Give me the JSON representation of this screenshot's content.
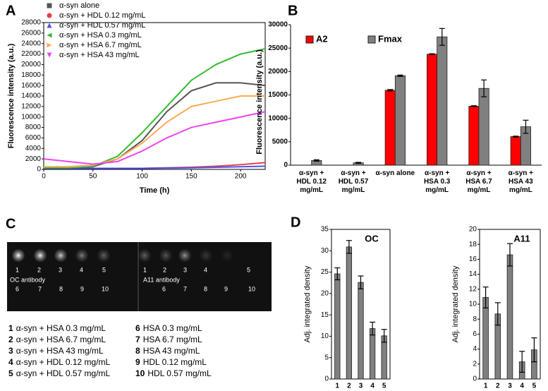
{
  "panels": [
    "A",
    "B",
    "C",
    "D"
  ],
  "chart_data": [
    {
      "type": "line",
      "xlabel": "Time (h)",
      "ylabel": "Fluorescence intensity (a.u.)",
      "x": [
        0,
        25,
        50,
        75,
        100,
        125,
        150,
        175,
        200,
        225
      ],
      "xlim": [
        0,
        225
      ],
      "xticks": [
        0,
        50,
        100,
        150,
        200
      ],
      "ylim": [
        0,
        28000
      ],
      "yticks": [
        0,
        2000,
        4000,
        6000,
        8000,
        10000,
        12000,
        14000,
        16000,
        18000,
        20000,
        22000,
        24000,
        26000,
        28000
      ],
      "series": [
        {
          "name": "α-syn  alone",
          "color": "#555555",
          "marker": "square",
          "values": [
            300,
            300,
            500,
            2000,
            5500,
            11000,
            15000,
            16500,
            16500,
            16000
          ]
        },
        {
          "name": "α-syn + HDL 0.12 mg/mL",
          "color": "#e84040",
          "marker": "circle",
          "values": [
            200,
            200,
            200,
            200,
            200,
            300,
            400,
            600,
            900,
            1300
          ]
        },
        {
          "name": "α-syn + HDL 0.57 mg/mL",
          "color": "#5050e8",
          "marker": "triangle-up",
          "values": [
            200,
            200,
            200,
            200,
            200,
            250,
            300,
            400,
            500,
            600
          ]
        },
        {
          "name": "α-syn + HSA 0.3 mg/mL",
          "color": "#33bb33",
          "marker": "triangle-left",
          "values": [
            300,
            300,
            600,
            2500,
            7000,
            12000,
            17000,
            20000,
            22000,
            23000
          ]
        },
        {
          "name": "α-syn + HSA 6.7 mg/mL",
          "color": "#ffaa55",
          "marker": "triangle-right",
          "values": [
            500,
            500,
            800,
            2000,
            5000,
            9000,
            12000,
            13000,
            14000,
            14000
          ]
        },
        {
          "name": "α-syn + HSA 43 mg/mL",
          "color": "#ee44ee",
          "marker": "triangle-down",
          "values": [
            2000,
            1500,
            1000,
            1500,
            3500,
            6000,
            8000,
            9000,
            10000,
            11000
          ]
        }
      ]
    },
    {
      "type": "bar",
      "ylabel": "Fluorescence intensity (a.u.)",
      "categories": [
        "α-syn + HDL 0.12 mg/mL",
        "α-syn + HDL 0.57 mg/mL",
        "α-syn alone",
        "α-syn + HSA 0.3 mg/mL",
        "α-syn + HSA 6.7 mg/mL",
        "α-syn + HSA 43 mg/mL"
      ],
      "ylim": [
        0,
        30000
      ],
      "yticks": [
        0,
        5000,
        10000,
        15000,
        20000,
        25000,
        30000
      ],
      "series": [
        {
          "name": "A2",
          "color": "#ff0000",
          "values": [
            null,
            null,
            16000,
            23700,
            12600,
            6100
          ],
          "errors": [
            null,
            null,
            150,
            100,
            100,
            100
          ]
        },
        {
          "name": "Fmax",
          "color": "#808080",
          "values": [
            1000,
            500,
            19100,
            27400,
            16400,
            8200
          ],
          "errors": [
            150,
            100,
            150,
            1800,
            1800,
            1400
          ]
        }
      ]
    },
    {
      "type": "bar",
      "title": "OC",
      "ylabel": "Adj. integrated density",
      "color": "#808080",
      "categories": [
        "1",
        "2",
        "3",
        "4",
        "5"
      ],
      "values": [
        24.6,
        30.9,
        22.6,
        11.8,
        10.1
      ],
      "errors": [
        1.4,
        1.5,
        1.5,
        1.5,
        1.5
      ],
      "ylim": [
        0,
        35
      ],
      "yticks": [
        0,
        5,
        10,
        15,
        20,
        25,
        30,
        35
      ]
    },
    {
      "type": "bar",
      "title": "A11",
      "ylabel": "Adj. integrated density",
      "color": "#808080",
      "categories": [
        "1",
        "2",
        "3",
        "4",
        "5"
      ],
      "values": [
        10.9,
        8.7,
        16.6,
        2.3,
        3.9
      ],
      "errors": [
        1.4,
        1.5,
        1.5,
        1.4,
        1.6
      ],
      "ylim": [
        0,
        20
      ],
      "yticks": [
        0,
        2,
        4,
        6,
        8,
        10,
        12,
        14,
        16,
        18,
        20
      ]
    }
  ],
  "blot": {
    "left_label": "OC antibody",
    "right_label": "A11 antibody",
    "spots": [
      "1",
      "2",
      "3",
      "4",
      "5",
      "6",
      "7",
      "8",
      "9",
      "10"
    ],
    "legend": [
      {
        "number": "1",
        "text": "α-syn + HSA 0.3 mg/mL"
      },
      {
        "number": "2",
        "text": "α-syn + HSA 6.7 mg/mL"
      },
      {
        "number": "3",
        "text": "α-syn + HSA 43 mg/mL"
      },
      {
        "number": "4",
        "text": "α-syn + HDL 0.12 mg/mL"
      },
      {
        "number": "5",
        "text": "α-syn + HDL 0.57 mg/mL"
      },
      {
        "number": "6",
        "text": "HSA 0.3 mg/mL"
      },
      {
        "number": "7",
        "text": "HSA 6.7 mg/mL"
      },
      {
        "number": "8",
        "text": "HSA 43 mg/mL"
      },
      {
        "number": "9",
        "text": "HDL 0.12 mg/mL"
      },
      {
        "number": "10",
        "text": "HDL 0.57 mg/mL"
      }
    ]
  }
}
